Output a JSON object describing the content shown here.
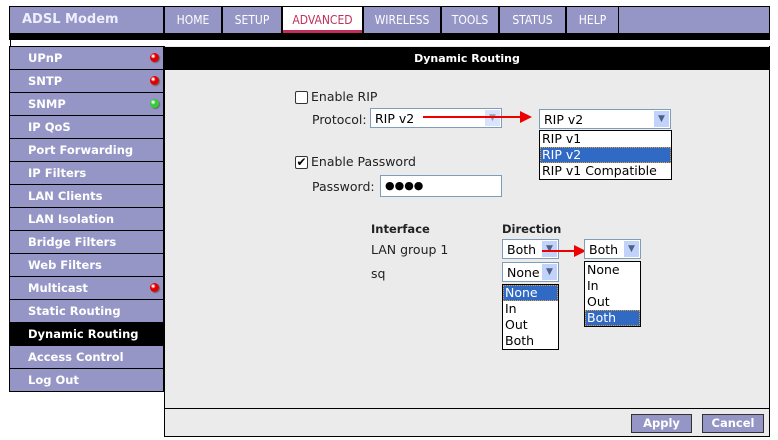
{
  "header": {
    "brand": "ADSL Modem",
    "tabs": [
      "HOME",
      "SETUP",
      "ADVANCED",
      "WIRELESS",
      "TOOLS",
      "STATUS",
      "HELP"
    ],
    "active_tab": "ADVANCED"
  },
  "sidebar": {
    "items": [
      {
        "label": "UPnP",
        "status": "red"
      },
      {
        "label": "SNTP",
        "status": "red"
      },
      {
        "label": "SNMP",
        "status": "green"
      },
      {
        "label": "IP QoS"
      },
      {
        "label": "Port Forwarding"
      },
      {
        "label": "IP Filters"
      },
      {
        "label": "LAN Clients"
      },
      {
        "label": "LAN Isolation"
      },
      {
        "label": "Bridge Filters"
      },
      {
        "label": "Web Filters"
      },
      {
        "label": "Multicast",
        "status": "red"
      },
      {
        "label": "Static Routing"
      },
      {
        "label": "Dynamic Routing",
        "active": true
      },
      {
        "label": "Access Control"
      },
      {
        "label": "Log Out"
      }
    ]
  },
  "main": {
    "title": "Dynamic Routing",
    "enable_rip": {
      "label": "Enable RIP",
      "checked": false
    },
    "protocol": {
      "label": "Protocol:",
      "value": "RIP v2",
      "dropdown_value": "RIP v2",
      "options": [
        "RIP v1",
        "RIP v2",
        "RIP v1 Compatible"
      ],
      "highlighted": "RIP v2"
    },
    "enable_password": {
      "label": "Enable Password",
      "checked": true
    },
    "password": {
      "label": "Password:",
      "value": "●●●●"
    },
    "table": {
      "col_interface": "Interface",
      "col_direction": "Direction",
      "rows": [
        {
          "interface": "LAN group 1",
          "direction": "Both"
        },
        {
          "interface": "sq",
          "direction": "None"
        }
      ]
    },
    "direction_options": [
      "None",
      "In",
      "Out",
      "Both"
    ],
    "lan_dropdown_value": "Both",
    "apply": "Apply",
    "cancel": "Cancel"
  },
  "colors": {
    "nav": "#9595c6",
    "active_tab_text": "#c0305a",
    "highlight": "#316ac5",
    "status_red": "#e00000",
    "status_green": "#33cc33"
  }
}
